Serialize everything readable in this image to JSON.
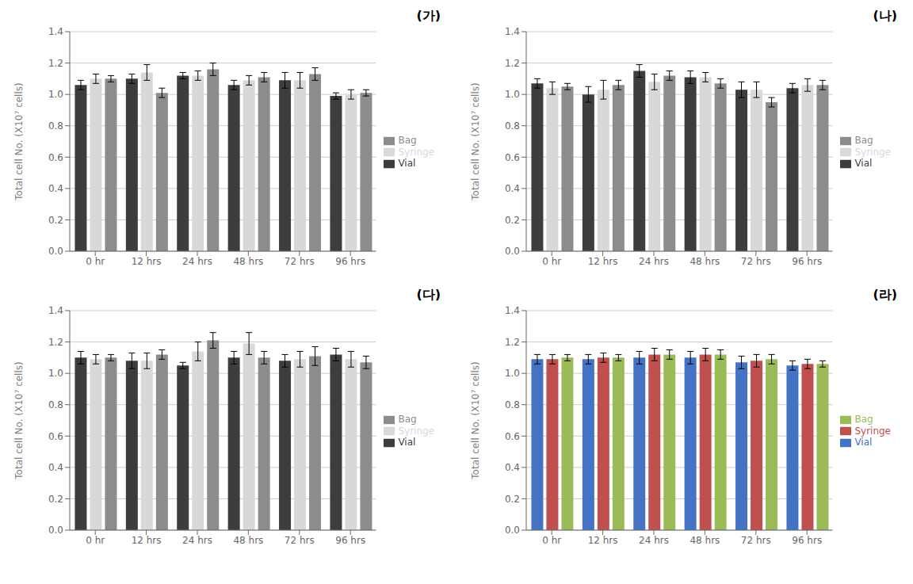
{
  "chart_data": [
    {
      "type": "bar",
      "annotations": [
        "(가)"
      ],
      "ylabel": "Total cell No. (X10⁷ cells)",
      "categories": [
        "0 hr",
        "12 hrs",
        "24 hrs",
        "48 hrs",
        "72 hrs",
        "96 hrs"
      ],
      "series": [
        {
          "name": "Vial",
          "color": "#3d3d3d",
          "values": [
            1.06,
            1.1,
            1.12,
            1.06,
            1.09,
            0.99
          ],
          "errors": [
            0.03,
            0.03,
            0.02,
            0.03,
            0.05,
            0.02
          ]
        },
        {
          "name": "Syringe",
          "color": "#d8d8d8",
          "values": [
            1.1,
            1.14,
            1.12,
            1.09,
            1.09,
            1.0
          ],
          "errors": [
            0.03,
            0.05,
            0.03,
            0.03,
            0.05,
            0.03
          ]
        },
        {
          "name": "Bag",
          "color": "#8c8c8c",
          "values": [
            1.1,
            1.01,
            1.16,
            1.11,
            1.13,
            1.01
          ],
          "errors": [
            0.02,
            0.03,
            0.04,
            0.03,
            0.04,
            0.02
          ]
        }
      ],
      "ylim": [
        0.0,
        1.4
      ],
      "yticks": [
        {
          "value": 0,
          "label": "0.0"
        },
        0.2,
        0.4,
        0.6,
        0.8,
        {
          "value": 1,
          "label": "1.0"
        },
        1.2,
        1.4
      ],
      "grid": true,
      "legend": "right"
    },
    {
      "type": "bar",
      "annotations": [
        "(나)"
      ],
      "ylabel": "Total cell No. (X10⁷ cells)",
      "categories": [
        "0 hr",
        "12 hrs",
        "24 hrs",
        "48 hrs",
        "72 hrs",
        "96 hrs"
      ],
      "series": [
        {
          "name": "Vial",
          "color": "#3d3d3d",
          "values": [
            1.07,
            1.0,
            1.15,
            1.11,
            1.03,
            1.04
          ],
          "errors": [
            0.03,
            0.05,
            0.04,
            0.04,
            0.05,
            0.03
          ]
        },
        {
          "name": "Syringe",
          "color": "#d8d8d8",
          "values": [
            1.04,
            1.03,
            1.08,
            1.11,
            1.03,
            1.06
          ],
          "errors": [
            0.04,
            0.06,
            0.05,
            0.03,
            0.05,
            0.04
          ]
        },
        {
          "name": "Bag",
          "color": "#8c8c8c",
          "values": [
            1.05,
            1.06,
            1.12,
            1.07,
            0.95,
            1.06
          ],
          "errors": [
            0.02,
            0.03,
            0.03,
            0.03,
            0.03,
            0.03
          ]
        }
      ],
      "ylim": [
        0.0,
        1.4
      ],
      "yticks": [
        {
          "value": 0,
          "label": "0.0"
        },
        0.2,
        0.4,
        0.6,
        0.8,
        {
          "value": 1,
          "label": "1.0"
        },
        1.2,
        1.4
      ],
      "grid": true,
      "legend": "right"
    },
    {
      "type": "bar",
      "annotations": [
        "(다)"
      ],
      "ylabel": "Total cell No. (X10⁷ cells)",
      "categories": [
        "0 hr",
        "12 hrs",
        "24 hrs",
        "48 hrs",
        "72 hrs",
        "96 hrs"
      ],
      "series": [
        {
          "name": "Vial",
          "color": "#3d3d3d",
          "values": [
            1.1,
            1.08,
            1.05,
            1.1,
            1.08,
            1.12
          ],
          "errors": [
            0.04,
            0.05,
            0.02,
            0.04,
            0.04,
            0.04
          ]
        },
        {
          "name": "Syringe",
          "color": "#d8d8d8",
          "values": [
            1.09,
            1.08,
            1.14,
            1.19,
            1.09,
            1.09
          ],
          "errors": [
            0.03,
            0.05,
            0.06,
            0.07,
            0.05,
            0.05
          ]
        },
        {
          "name": "Bag",
          "color": "#8c8c8c",
          "values": [
            1.1,
            1.12,
            1.21,
            1.1,
            1.11,
            1.07
          ],
          "errors": [
            0.02,
            0.03,
            0.05,
            0.04,
            0.06,
            0.04
          ]
        }
      ],
      "ylim": [
        0.0,
        1.4
      ],
      "yticks": [
        {
          "value": 0,
          "label": "0.0"
        },
        0.2,
        0.4,
        0.6,
        0.8,
        {
          "value": 1,
          "label": "1.0"
        },
        1.2,
        1.4
      ],
      "grid": true,
      "legend": "right"
    },
    {
      "type": "bar",
      "annotations": [
        "(라)"
      ],
      "ylabel": "Total cell No. (X10⁷ cells)",
      "categories": [
        "0 hr",
        "12 hrs",
        "24 hrs",
        "48 hrs",
        "72 hrs",
        "96 hrs"
      ],
      "series": [
        {
          "name": "Vial",
          "color": "#4472c4",
          "values": [
            1.09,
            1.09,
            1.1,
            1.1,
            1.07,
            1.05
          ],
          "errors": [
            0.03,
            0.03,
            0.04,
            0.04,
            0.04,
            0.03
          ]
        },
        {
          "name": "Syringe",
          "color": "#c0504d",
          "values": [
            1.09,
            1.1,
            1.12,
            1.12,
            1.08,
            1.06
          ],
          "errors": [
            0.03,
            0.03,
            0.04,
            0.04,
            0.04,
            0.03
          ]
        },
        {
          "name": "Bag",
          "color": "#9bbb59",
          "values": [
            1.1,
            1.1,
            1.12,
            1.12,
            1.09,
            1.06
          ],
          "errors": [
            0.02,
            0.02,
            0.03,
            0.03,
            0.03,
            0.02
          ]
        }
      ],
      "ylim": [
        0.0,
        1.4
      ],
      "yticks": [
        {
          "value": 0,
          "label": "0.0"
        },
        0.2,
        0.4,
        0.6,
        0.8,
        {
          "value": 1,
          "label": "1.0"
        },
        1.2,
        1.4
      ],
      "grid": true,
      "legend": "right"
    }
  ]
}
